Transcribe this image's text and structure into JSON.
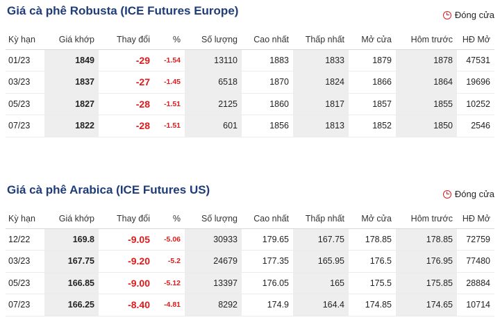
{
  "sections": [
    {
      "title": "Giá cà phê Robusta (ICE Futures Europe)",
      "status": "Đóng cửa",
      "headers": [
        "Kỳ hạn",
        "Giá khớp",
        "Thay đổi",
        "%",
        "Số lượng",
        "Cao nhất",
        "Thấp nhất",
        "Mở cửa",
        "Hôm trước",
        "HĐ Mở"
      ],
      "rows": [
        [
          "01/23",
          "1849",
          "-29",
          "-1.54",
          "13110",
          "1883",
          "1833",
          "1879",
          "1878",
          "47531"
        ],
        [
          "03/23",
          "1837",
          "-27",
          "-1.45",
          "6518",
          "1870",
          "1824",
          "1866",
          "1864",
          "19696"
        ],
        [
          "05/23",
          "1827",
          "-28",
          "-1.51",
          "2125",
          "1860",
          "1817",
          "1857",
          "1855",
          "10252"
        ],
        [
          "07/23",
          "1822",
          "-28",
          "-1.51",
          "601",
          "1856",
          "1813",
          "1852",
          "1850",
          "2546"
        ]
      ]
    },
    {
      "title": "Giá cà phê Arabica (ICE Futures US)",
      "status": "Đóng cửa",
      "headers": [
        "Kỳ hạn",
        "Giá khớp",
        "Thay đổi",
        "%",
        "Số lượng",
        "Cao nhất",
        "Thấp nhất",
        "Mở cửa",
        "Hôm trước",
        "HĐ Mở"
      ],
      "rows": [
        [
          "12/22",
          "169.8",
          "-9.05",
          "-5.06",
          "30933",
          "179.65",
          "167.75",
          "178.85",
          "178.85",
          "72759"
        ],
        [
          "03/23",
          "167.75",
          "-9.20",
          "-5.2",
          "24679",
          "177.35",
          "165.95",
          "176.5",
          "176.95",
          "77480"
        ],
        [
          "05/23",
          "166.85",
          "-9.00",
          "-5.12",
          "13397",
          "176.05",
          "165",
          "175.5",
          "175.85",
          "28884"
        ],
        [
          "07/23",
          "166.25",
          "-8.40",
          "-4.81",
          "8292",
          "174.9",
          "164.4",
          "174.85",
          "174.65",
          "10714"
        ]
      ]
    }
  ],
  "icons": {
    "status": "clock-icon"
  },
  "colors": {
    "title": "#1f3c7a",
    "negative": "#e01a1a",
    "status_icon": "#d32020",
    "shade": "#eeeeee"
  }
}
